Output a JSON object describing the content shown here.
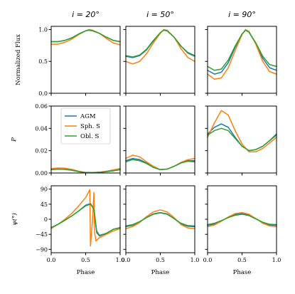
{
  "colors": {
    "AGM": "#1f77b4",
    "Sph. S": "#ff7f0e",
    "Obl. S": "#2ca02c"
  },
  "legend": {
    "placement": "top-left (row 2, column 1)",
    "entries": [
      "AGM",
      "Sph. S",
      "Obl. S"
    ]
  },
  "column_titles": [
    "i = 20°",
    "i = 50°",
    "i = 90°"
  ],
  "row_labels": [
    "Normalized Flux",
    "P",
    "ψ(°)"
  ],
  "xlabel": "Phase",
  "chart_data": [
    {
      "type": "line",
      "row": 0,
      "col": 0,
      "title": "i = 20°",
      "ylabel": "Normalized Flux",
      "xlabel": "",
      "xlim": [
        0,
        1
      ],
      "ylim": [
        0,
        1.05
      ],
      "yticks": [
        "0.0",
        "0.5",
        "1.0"
      ],
      "xticks": [],
      "legend": false,
      "x": [
        0,
        0.1,
        0.2,
        0.3,
        0.4,
        0.5,
        0.55,
        0.6,
        0.7,
        0.8,
        0.9,
        1.0
      ],
      "series": [
        {
          "name": "AGM",
          "values": [
            0.81,
            0.81,
            0.83,
            0.87,
            0.93,
            0.98,
            0.99,
            0.98,
            0.94,
            0.88,
            0.83,
            0.81
          ]
        },
        {
          "name": "Sph. S",
          "values": [
            0.77,
            0.77,
            0.8,
            0.85,
            0.92,
            0.98,
            1.0,
            0.99,
            0.94,
            0.86,
            0.79,
            0.76
          ]
        },
        {
          "name": "Obl. S",
          "values": [
            0.81,
            0.81,
            0.83,
            0.87,
            0.93,
            0.98,
            0.99,
            0.98,
            0.94,
            0.88,
            0.83,
            0.81
          ]
        }
      ]
    },
    {
      "type": "line",
      "row": 0,
      "col": 1,
      "title": "i = 50°",
      "xlim": [
        0,
        1
      ],
      "ylim": [
        0,
        1.05
      ],
      "xticks": [],
      "yticks": [],
      "x": [
        0,
        0.1,
        0.2,
        0.3,
        0.4,
        0.5,
        0.55,
        0.6,
        0.7,
        0.8,
        0.9,
        1.0
      ],
      "series": [
        {
          "name": "AGM",
          "values": [
            0.58,
            0.56,
            0.59,
            0.68,
            0.82,
            0.95,
            0.99,
            0.98,
            0.88,
            0.74,
            0.63,
            0.58
          ]
        },
        {
          "name": "Sph. S",
          "values": [
            0.5,
            0.46,
            0.5,
            0.62,
            0.79,
            0.94,
            1.0,
            0.99,
            0.88,
            0.7,
            0.56,
            0.5
          ]
        },
        {
          "name": "Obl. S",
          "values": [
            0.59,
            0.57,
            0.6,
            0.69,
            0.83,
            0.95,
            0.99,
            0.98,
            0.88,
            0.74,
            0.64,
            0.59
          ]
        }
      ]
    },
    {
      "type": "line",
      "row": 0,
      "col": 2,
      "title": "i = 90°",
      "xlim": [
        0,
        1
      ],
      "ylim": [
        0,
        1.05
      ],
      "xticks": [],
      "yticks": [],
      "x": [
        0,
        0.1,
        0.2,
        0.3,
        0.4,
        0.5,
        0.55,
        0.6,
        0.7,
        0.8,
        0.9,
        1.0
      ],
      "series": [
        {
          "name": "AGM",
          "values": [
            0.36,
            0.3,
            0.33,
            0.48,
            0.72,
            0.93,
            0.99,
            0.96,
            0.78,
            0.55,
            0.4,
            0.36
          ]
        },
        {
          "name": "Sph. S",
          "values": [
            0.3,
            0.22,
            0.24,
            0.4,
            0.67,
            0.92,
            1.0,
            0.97,
            0.77,
            0.5,
            0.34,
            0.3
          ]
        },
        {
          "name": "Obl. S",
          "values": [
            0.42,
            0.36,
            0.38,
            0.52,
            0.74,
            0.93,
            0.99,
            0.96,
            0.79,
            0.58,
            0.45,
            0.42
          ]
        }
      ]
    },
    {
      "type": "line",
      "row": 1,
      "col": 0,
      "ylabel": "P",
      "xlim": [
        0,
        1
      ],
      "ylim": [
        0,
        0.06
      ],
      "yticks": [
        "0.00",
        "0.02",
        "0.04",
        "0.06"
      ],
      "xticks": [],
      "legend": true,
      "x": [
        0,
        0.1,
        0.2,
        0.3,
        0.4,
        0.5,
        0.6,
        0.7,
        0.8,
        0.9,
        1.0
      ],
      "series": [
        {
          "name": "AGM",
          "values": [
            0.003,
            0.0035,
            0.0033,
            0.0025,
            0.0012,
            0.0004,
            0.0003,
            0.0006,
            0.0012,
            0.002,
            0.003
          ]
        },
        {
          "name": "Sph. S",
          "values": [
            0.004,
            0.0045,
            0.0043,
            0.0033,
            0.0016,
            0.0005,
            0.0004,
            0.0008,
            0.0016,
            0.0027,
            0.004
          ]
        },
        {
          "name": "Obl. S",
          "values": [
            0.003,
            0.0035,
            0.0033,
            0.0025,
            0.0012,
            0.0004,
            0.0003,
            0.0006,
            0.0012,
            0.002,
            0.003
          ]
        }
      ]
    },
    {
      "type": "line",
      "row": 1,
      "col": 1,
      "xlim": [
        0,
        1
      ],
      "ylim": [
        0,
        0.06
      ],
      "xticks": [],
      "yticks": [],
      "x": [
        0,
        0.1,
        0.2,
        0.3,
        0.4,
        0.5,
        0.6,
        0.7,
        0.8,
        0.9,
        1.0
      ],
      "series": [
        {
          "name": "AGM",
          "values": [
            0.011,
            0.013,
            0.012,
            0.009,
            0.005,
            0.003,
            0.0035,
            0.006,
            0.009,
            0.011,
            0.011
          ]
        },
        {
          "name": "Sph. S",
          "values": [
            0.013,
            0.016,
            0.0145,
            0.01,
            0.006,
            0.003,
            0.0035,
            0.006,
            0.0095,
            0.012,
            0.013
          ]
        },
        {
          "name": "Obl. S",
          "values": [
            0.01,
            0.012,
            0.011,
            0.0085,
            0.005,
            0.003,
            0.0035,
            0.006,
            0.009,
            0.0105,
            0.01
          ]
        }
      ]
    },
    {
      "type": "line",
      "row": 1,
      "col": 2,
      "xlim": [
        0,
        1
      ],
      "ylim": [
        0,
        0.06
      ],
      "xticks": [],
      "yticks": [],
      "x": [
        0,
        0.1,
        0.2,
        0.3,
        0.4,
        0.5,
        0.6,
        0.7,
        0.8,
        0.9,
        1.0
      ],
      "series": [
        {
          "name": "AGM",
          "values": [
            0.035,
            0.041,
            0.044,
            0.041,
            0.032,
            0.024,
            0.02,
            0.021,
            0.024,
            0.029,
            0.035
          ]
        },
        {
          "name": "Sph. S",
          "values": [
            0.032,
            0.045,
            0.056,
            0.052,
            0.038,
            0.026,
            0.019,
            0.019,
            0.022,
            0.027,
            0.032
          ]
        },
        {
          "name": "Obl. S",
          "values": [
            0.034,
            0.038,
            0.04,
            0.038,
            0.031,
            0.024,
            0.02,
            0.021,
            0.024,
            0.029,
            0.034
          ]
        }
      ]
    },
    {
      "type": "line",
      "row": 2,
      "col": 0,
      "ylabel": "ψ(°)",
      "xlabel": "Phase",
      "xlim": [
        0,
        1
      ],
      "ylim": [
        -100,
        100
      ],
      "yticks": [
        "90",
        "45",
        "0",
        "−45",
        "−90"
      ],
      "xticks": [
        "0.0",
        "0.5",
        "1.0"
      ],
      "x_agm": [
        0,
        0.1,
        0.2,
        0.3,
        0.4,
        0.5,
        0.57,
        0.62,
        0.66,
        0.7,
        0.8,
        0.9,
        1.0
      ],
      "series": [
        {
          "name": "AGM",
          "values": [
            -25,
            -15,
            -3,
            10,
            25,
            42,
            47,
            30,
            -40,
            -50,
            -42,
            -30,
            -25
          ]
        },
        {
          "name": "Sph. S",
          "x": [
            0,
            0.1,
            0.2,
            0.3,
            0.4,
            0.5,
            0.56,
            0.57,
            0.6,
            0.62,
            0.63,
            0.65,
            0.7,
            0.8,
            0.9,
            1.0
          ],
          "values": [
            -28,
            -15,
            0,
            18,
            40,
            65,
            88,
            -80,
            0,
            80,
            -40,
            -65,
            -55,
            -45,
            -35,
            -28
          ]
        },
        {
          "name": "Obl. S",
          "values": [
            -25,
            -15,
            -3,
            10,
            25,
            40,
            45,
            30,
            -35,
            -48,
            -42,
            -30,
            -25
          ]
        }
      ]
    },
    {
      "type": "line",
      "row": 2,
      "col": 1,
      "xlabel": "Phase",
      "xlim": [
        0,
        1
      ],
      "ylim": [
        -100,
        100
      ],
      "yticks": [],
      "xticks": [
        "0.0",
        "0.5",
        "1.0"
      ],
      "x": [
        0,
        0.1,
        0.2,
        0.3,
        0.4,
        0.5,
        0.6,
        0.7,
        0.8,
        0.9,
        1.0
      ],
      "series": [
        {
          "name": "AGM",
          "values": [
            -22,
            -18,
            -8,
            5,
            16,
            20,
            16,
            2,
            -14,
            -21,
            -22
          ]
        },
        {
          "name": "Sph. S",
          "values": [
            -28,
            -22,
            -10,
            8,
            22,
            28,
            22,
            5,
            -16,
            -26,
            -28
          ]
        },
        {
          "name": "Obl. S",
          "values": [
            -20,
            -16,
            -7,
            5,
            15,
            19,
            15,
            2,
            -12,
            -19,
            -20
          ]
        }
      ]
    },
    {
      "type": "line",
      "row": 2,
      "col": 2,
      "xlabel": "Phase",
      "xlim": [
        0,
        1
      ],
      "ylim": [
        -100,
        100
      ],
      "yticks": [],
      "xticks": [
        "0.0",
        "0.5",
        "1.0"
      ],
      "x": [
        0,
        0.1,
        0.2,
        0.3,
        0.4,
        0.5,
        0.6,
        0.7,
        0.8,
        0.9,
        1.0
      ],
      "series": [
        {
          "name": "AGM",
          "values": [
            -18,
            -14,
            -5,
            6,
            14,
            17,
            13,
            2,
            -10,
            -17,
            -18
          ]
        },
        {
          "name": "Sph. S",
          "values": [
            -22,
            -17,
            -6,
            7,
            17,
            20,
            15,
            2,
            -12,
            -20,
            -22
          ]
        },
        {
          "name": "Obl. S",
          "values": [
            -16,
            -12,
            -4,
            5,
            12,
            15,
            11,
            1,
            -9,
            -15,
            -16
          ]
        }
      ]
    }
  ]
}
